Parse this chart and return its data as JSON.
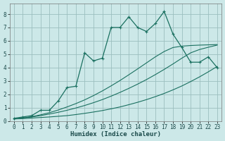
{
  "xlabel": "Humidex (Indice chaleur)",
  "background_color": "#cce8e8",
  "grid_color": "#9bbfbf",
  "line_color": "#1a7060",
  "xlim": [
    -0.5,
    23.5
  ],
  "ylim": [
    0,
    8.8
  ],
  "x": [
    0,
    1,
    2,
    3,
    4,
    5,
    6,
    7,
    8,
    9,
    10,
    11,
    12,
    13,
    14,
    15,
    16,
    17,
    18,
    19,
    20,
    21,
    22,
    23
  ],
  "line_jagged": [
    0.2,
    0.3,
    0.4,
    0.8,
    0.8,
    1.5,
    2.5,
    2.6,
    5.1,
    4.5,
    4.7,
    7.0,
    7.0,
    7.8,
    7.0,
    6.7,
    7.3,
    8.2,
    6.5,
    5.5,
    4.4,
    4.4,
    4.8,
    4.0
  ],
  "line_smooth1": [
    0.15,
    0.18,
    0.22,
    0.26,
    0.3,
    0.35,
    0.4,
    0.48,
    0.57,
    0.67,
    0.78,
    0.91,
    1.05,
    1.22,
    1.4,
    1.6,
    1.82,
    2.06,
    2.33,
    2.62,
    2.95,
    3.3,
    3.68,
    4.08
  ],
  "line_smooth2": [
    0.15,
    0.22,
    0.3,
    0.4,
    0.52,
    0.65,
    0.8,
    0.97,
    1.16,
    1.37,
    1.6,
    1.86,
    2.14,
    2.44,
    2.76,
    3.1,
    3.47,
    3.86,
    4.27,
    4.7,
    5.1,
    5.35,
    5.52,
    5.68
  ],
  "line_smooth3": [
    0.15,
    0.22,
    0.32,
    0.46,
    0.62,
    0.82,
    1.05,
    1.3,
    1.58,
    1.9,
    2.25,
    2.63,
    3.03,
    3.46,
    3.9,
    4.35,
    4.8,
    5.2,
    5.5,
    5.6,
    5.65,
    5.68,
    5.7,
    5.72
  ],
  "xticks": [
    0,
    1,
    2,
    3,
    4,
    5,
    6,
    7,
    8,
    9,
    10,
    11,
    12,
    13,
    14,
    15,
    16,
    17,
    18,
    19,
    20,
    21,
    22,
    23
  ],
  "yticks": [
    0,
    1,
    2,
    3,
    4,
    5,
    6,
    7,
    8
  ],
  "tick_fontsize": 5.5,
  "label_fontsize": 6.5
}
